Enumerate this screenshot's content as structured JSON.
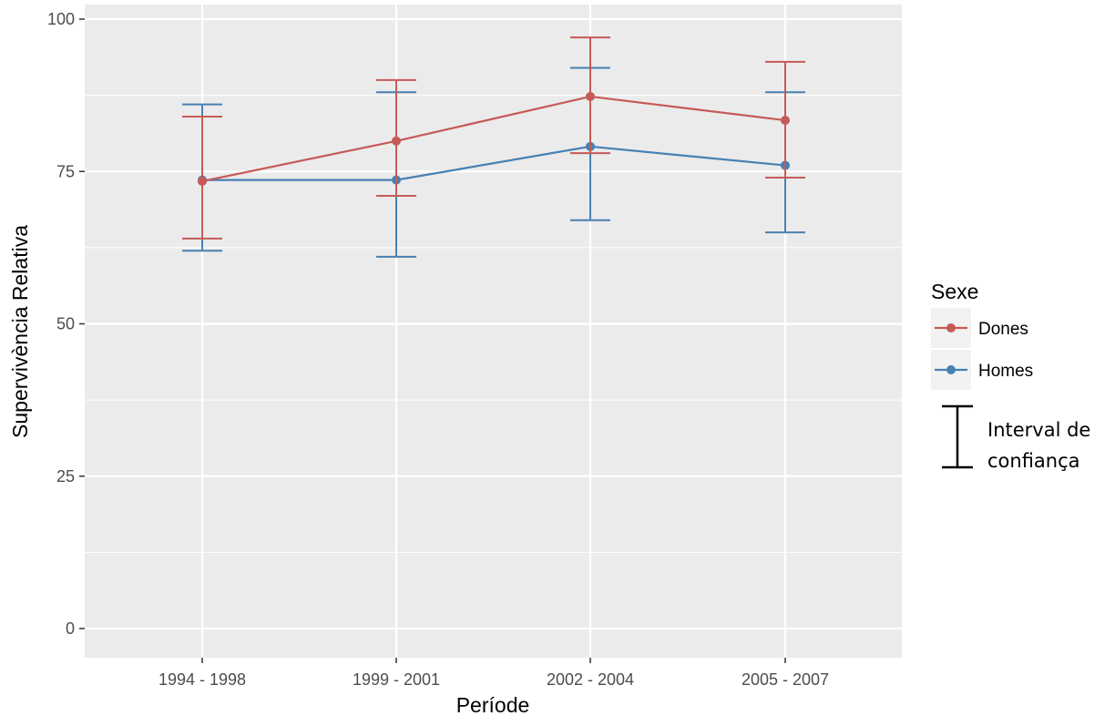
{
  "chart_data": {
    "type": "line",
    "title": "",
    "xlabel": "Període",
    "ylabel": "Supervivència Relativa",
    "categories": [
      "1994 - 1998",
      "1999 - 2001",
      "2002 - 2004",
      "2005 - 2007"
    ],
    "ylim": [
      0,
      100
    ],
    "yticks": [
      0,
      25,
      50,
      75,
      100
    ],
    "grid": true,
    "legend": {
      "title": "Sexe",
      "position": "right",
      "entries": [
        "Dones",
        "Homes"
      ]
    },
    "error_bar_note": [
      "Interval de",
      "confiança"
    ],
    "series": [
      {
        "name": "Dones",
        "color": "#c65a58",
        "values": [
          73.4,
          80.0,
          87.3,
          83.4
        ],
        "lower": [
          64,
          71,
          78,
          74
        ],
        "upper": [
          84,
          90,
          97,
          93
        ]
      },
      {
        "name": "Homes",
        "color": "#4780b3",
        "values": [
          73.6,
          73.6,
          79.1,
          76.0
        ],
        "lower": [
          62,
          61,
          67,
          65
        ],
        "upper": [
          86,
          88,
          92,
          88
        ]
      }
    ],
    "colors": {
      "panel": "#ebebeb",
      "grid": "#ffffff",
      "axis_text": "#4d4d4d"
    }
  }
}
